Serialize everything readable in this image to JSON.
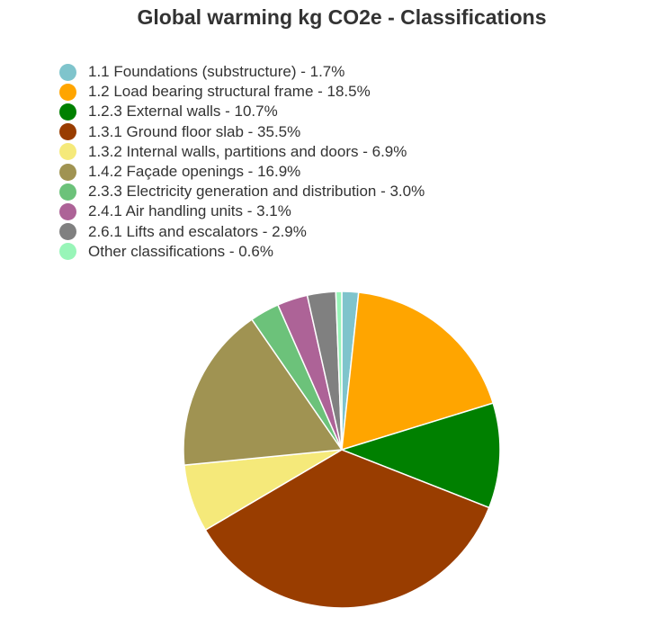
{
  "chart_data": {
    "type": "pie",
    "title": "Global warming kg CO2e - Classifications",
    "legend_position": "top-left",
    "slices": [
      {
        "label": "1.1 Foundations (substructure) - 1.7%",
        "value": 1.7,
        "color": "#7fc4cc"
      },
      {
        "label": "1.2 Load bearing structural frame - 18.5%",
        "value": 18.5,
        "color": "#ffa500"
      },
      {
        "label": "1.2.3 External walls - 10.7%",
        "value": 10.7,
        "color": "#008000"
      },
      {
        "label": "1.3.1 Ground floor slab - 35.5%",
        "value": 35.5,
        "color": "#993d00"
      },
      {
        "label": "1.3.2 Internal walls, partitions and doors - 6.9%",
        "value": 6.9,
        "color": "#f5e97a"
      },
      {
        "label": "1.4.2 Façade openings - 16.9%",
        "value": 16.9,
        "color": "#a09352"
      },
      {
        "label": "2.3.3 Electricity generation and distribution - 3.0%",
        "value": 3.0,
        "color": "#6cc27a"
      },
      {
        "label": "2.4.1 Air handling units - 3.1%",
        "value": 3.1,
        "color": "#ad6397"
      },
      {
        "label": "2.6.1 Lifts and escalators - 2.9%",
        "value": 2.9,
        "color": "#808080"
      },
      {
        "label": "Other classifications - 0.6%",
        "value": 0.6,
        "color": "#98f5b8"
      }
    ]
  }
}
